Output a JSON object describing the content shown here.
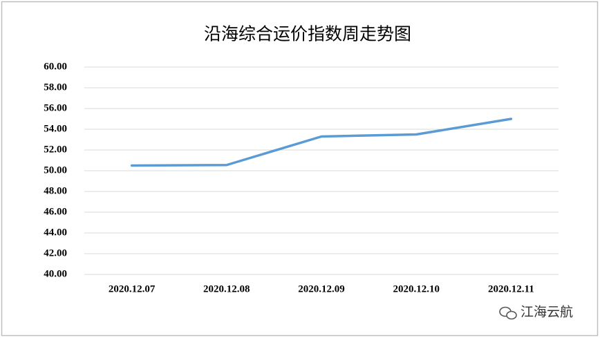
{
  "chart_data": {
    "type": "line",
    "title": "沿海综合运价指数周走势图",
    "categories": [
      "2020.12.07",
      "2020.12.08",
      "2020.12.09",
      "2020.12.10",
      "2020.12.11"
    ],
    "series": [
      {
        "name": "沿海综合运价指数",
        "color": "#5b9bd5",
        "values": [
          50.5,
          50.55,
          53.3,
          53.5,
          55.0
        ]
      }
    ],
    "ylim": [
      40,
      60
    ],
    "yticks": [
      {
        "value": 40,
        "label": "40.00"
      },
      {
        "value": 42,
        "label": "42.00"
      },
      {
        "value": 44,
        "label": "44.00"
      },
      {
        "value": 46,
        "label": "46.00"
      },
      {
        "value": 48,
        "label": "48.00"
      },
      {
        "value": 50,
        "label": "50.00"
      },
      {
        "value": 52,
        "label": "52.00"
      },
      {
        "value": 54,
        "label": "54.00"
      },
      {
        "value": 56,
        "label": "56.00"
      },
      {
        "value": 58,
        "label": "58.00"
      },
      {
        "value": 60,
        "label": "60.00"
      }
    ],
    "grid": true,
    "legend": false,
    "watermark": "江海云航"
  }
}
